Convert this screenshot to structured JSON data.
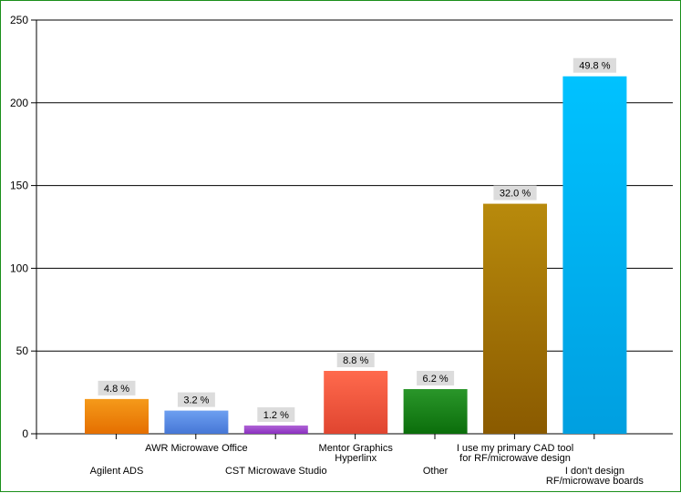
{
  "chart_data": {
    "type": "bar",
    "title": "",
    "xlabel": "",
    "ylabel": "",
    "ylim": [
      0,
      250
    ],
    "yticks": [
      0,
      50,
      100,
      150,
      200,
      250
    ],
    "grid": true,
    "legend": "none",
    "categories": [
      "Agilent ADS",
      "AWR Microwave Office",
      "CST Microwave Studio",
      "Mentor Graphics Hyperlinx",
      "Other",
      "I use my primary CAD tool for RF/microwave design",
      "I don't design RF/microwave boards"
    ],
    "category_label_lines": [
      [
        "Agilent ADS"
      ],
      [
        "AWR Microwave Office"
      ],
      [
        "CST Microwave Studio"
      ],
      [
        "Mentor Graphics",
        "Hyperlinx"
      ],
      [
        "Other"
      ],
      [
        "I use my primary CAD tool",
        "for RF/microwave design"
      ],
      [
        "I don't design",
        "RF/microwave boards"
      ]
    ],
    "values": [
      21,
      14,
      5,
      38,
      27,
      139,
      216
    ],
    "percent_labels": [
      "4.8 %",
      "3.2 %",
      "1.2 %",
      "8.8 %",
      "6.2 %",
      "32.0 %",
      "49.8 %"
    ],
    "colors": [
      [
        "#f59a1a",
        "#e56f00"
      ],
      [
        "#6d9ff0",
        "#4677d6"
      ],
      [
        "#b064d6",
        "#8a2fbf"
      ],
      [
        "#ff6a4d",
        "#e04530"
      ],
      [
        "#2a962a",
        "#0b6e0b"
      ],
      [
        "#b88a0c",
        "#8a5a00"
      ],
      [
        "#00c2ff",
        "#009fe0"
      ]
    ]
  }
}
